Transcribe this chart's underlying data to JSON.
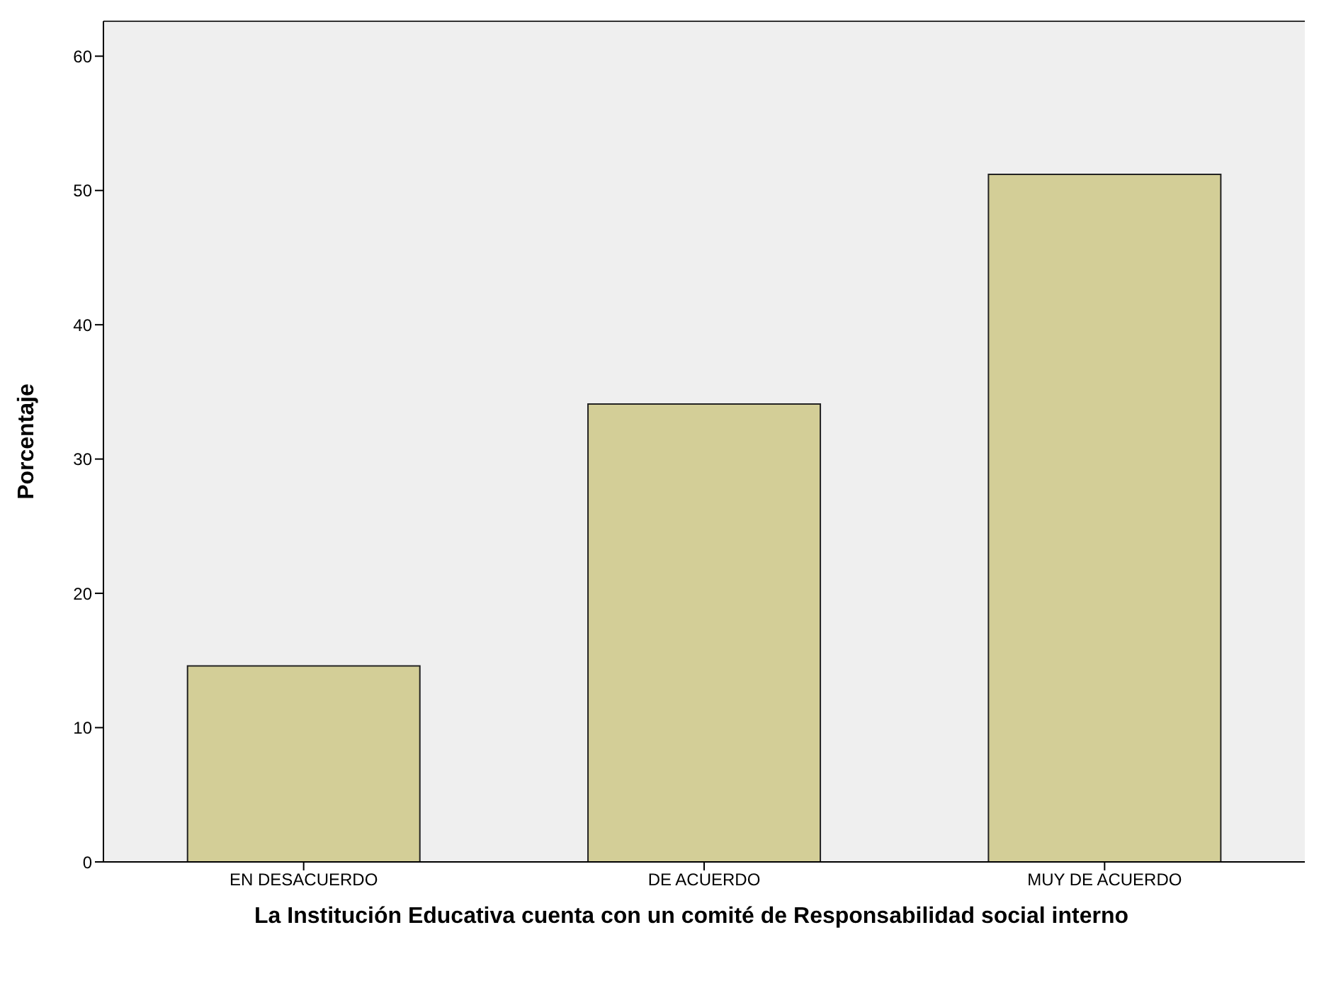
{
  "chart_data": {
    "type": "bar",
    "xlabel": "La Institución Educativa cuenta con un comité de Responsabilidad social interno",
    "ylabel": "Porcentaje",
    "categories": [
      "EN DESACUERDO",
      "DE ACUERDO",
      "MUY DE ACUERDO"
    ],
    "values": [
      14.6,
      34.1,
      51.2
    ],
    "color": "#d3ce97",
    "ylim": [
      0,
      62.6
    ],
    "yticks": [
      0,
      10,
      20,
      30,
      40,
      50,
      60
    ],
    "grid": false
  }
}
